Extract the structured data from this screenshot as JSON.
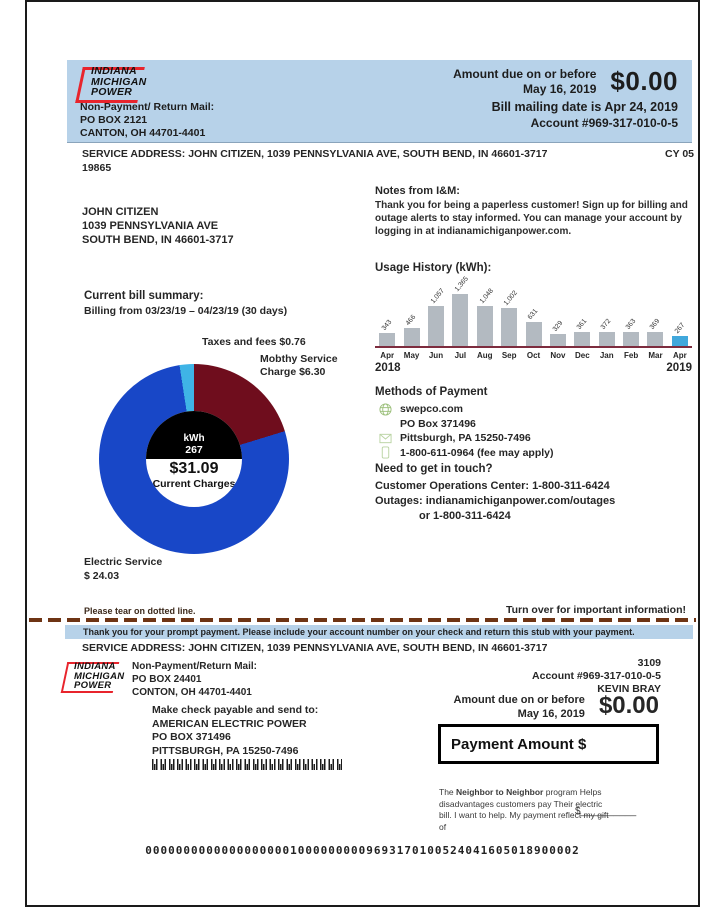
{
  "colors": {
    "header_bg": "#b7d2e9",
    "logo_red": "#e8242c",
    "bar_gray": "#b3bac1",
    "bar_highlight_blue": "#41a8dc",
    "chart_baseline_maroon": "#7d2c3e",
    "pie_blue": "#1847c7",
    "pie_dark_red": "#6f0d1d",
    "pie_light_blue": "#3fb4e6",
    "tear_dash_brown": "#6e3414"
  },
  "header": {
    "logo_lines": [
      "INDIANA",
      "MICHIGAN",
      "POWER"
    ],
    "return_mail_title": "Non-Payment/ Return Mail:",
    "return_mail_lines": [
      "PO BOX 2121",
      "CANTON, OH 44701-4401"
    ],
    "amount_due_label": "Amount due on or before",
    "due_date": "May 16, 2019",
    "amount": "$0.00",
    "mailing_date": "Bill mailing date is Apr 24, 2019",
    "account": "Account #969-317-010-0-5"
  },
  "service_line": {
    "address": "SERVICE ADDRESS: JOHN CITIZEN, 1039 PENNSYLVANIA AVE, SOUTH BEND, IN 46601-3717",
    "cycle": "CY 05",
    "code": "19865"
  },
  "customer": {
    "lines": [
      "JOHN CITIZEN",
      "1039 PENNSYLVANIA AVE",
      "SOUTH BEND, IN 46601-3717"
    ]
  },
  "notes": {
    "title": "Notes from I&M:",
    "body": "Thank you for being a paperless customer! Sign up for billing and outage alerts to stay informed. You can manage your account by logging in at indianamichiganpower.com."
  },
  "chart_data": [
    {
      "type": "bar",
      "title": "Usage History (kWh):",
      "categories": [
        "Apr",
        "May",
        "Jun",
        "Jul",
        "Aug",
        "Sep",
        "Oct",
        "Nov",
        "Dec",
        "Jan",
        "Feb",
        "Mar",
        "Apr"
      ],
      "values": [
        343,
        466,
        1057,
        1365,
        1048,
        1002,
        631,
        329,
        361,
        372,
        363,
        369,
        267
      ],
      "value_labels": [
        "343",
        "466",
        "1,057",
        "1,365",
        "1,048",
        "1,002",
        "631",
        "329",
        "361",
        "372",
        "363",
        "369",
        "267"
      ],
      "year_start": "2018",
      "year_end": "2019",
      "ylim": [
        0,
        1365
      ],
      "bar_color": "#b3bac1",
      "highlight_color": "#41a8dc",
      "highlight_index": 12,
      "baseline_color": "#7d2c3e",
      "grid": false,
      "legend": "none"
    },
    {
      "type": "pie",
      "title": "Current bill summary:",
      "subtitle": "Billing from 03/23/19 – 04/23/19 (30 days)",
      "donut": true,
      "total": 31.09,
      "slices": [
        {
          "label": "Electric Service",
          "value": 24.03,
          "color": "#1847c7"
        },
        {
          "label": "Mobthy Service Charge",
          "value": 6.3,
          "color": "#6f0d1d"
        },
        {
          "label": "Taxes and fees",
          "value": 0.76,
          "color": "#3fb4e6"
        }
      ],
      "center_text": [
        "kWh",
        "267",
        "$31.09",
        "Current Charges"
      ]
    }
  ],
  "summary": {
    "title": "Current bill summary:",
    "subtitle": "Billing from 03/23/19 – 04/23/19 (30 days)",
    "taxes_label": "Taxes and fees $0.76",
    "monthly_label_1": "Mobthy Service",
    "monthly_label_2": "Charge $6.30",
    "electric_label_1": "Electric Service",
    "electric_label_2": "$ 24.03",
    "center_kwh_label": "kWh",
    "center_kwh_value": "267",
    "center_total": "$31.09",
    "center_total_label": "Current Charges"
  },
  "payment_methods": {
    "title": "Methods of Payment",
    "web": "swepco.com",
    "mail_line_1": "PO Box 371496",
    "mail_line_2": "Pittsburgh, PA 15250-7496",
    "phone": "1-800-611-0964 (fee may apply)",
    "contact_title": "Need to get in touch?",
    "contact_line_1": "Customer Operations Center: 1-800-311-6424",
    "contact_line_2": "Outages: indianamichiganpower.com/outages",
    "contact_line_3": "or 1-800-311-6424"
  },
  "tear": {
    "note": "Please tear on dotted line.",
    "turn_over": "Turn over for important information!",
    "banner": "Thank you for your prompt payment. Please include your account number on your check and return this stub with your payment."
  },
  "stub": {
    "service_address": "SERVICE ADDRESS: JOHN CITIZEN, 1039 PENNSYLVANIA AVE, SOUTH BEND, IN 46601-3717",
    "logo_lines": [
      "INDIANA",
      "MICHIGAN",
      "POWER"
    ],
    "return_mail_title": "Non-Payment/Return Mail:",
    "return_mail_lines": [
      "PO BOX 24401",
      "CONTON, OH 44701-4401"
    ],
    "check_lines": [
      "Make check payable and send to:",
      "AMERICAN ELECTRIC POWER",
      "PO BOX 371496",
      "PITTSBURGH, PA 15250-7496"
    ],
    "doc_number": "3109",
    "account": "Account #969-317-010-0-5",
    "customer_name": "KEVIN BRAY",
    "amount_due_label": "Amount due on or before",
    "due_date": "May 16, 2019",
    "amount": "$0.00",
    "payment_box_label": "Payment Amount $",
    "neighbor_prefix": "The ",
    "neighbor_program": "Neighbor to Neighbor",
    "neighbor_rest": " program Helps disadvantages customers pay Their electric bill. I want to help. My payment reflect my gift of",
    "gift_field": "$__________",
    "ocr_line": "000000000000000000010000000009693170100524041605018900002"
  }
}
